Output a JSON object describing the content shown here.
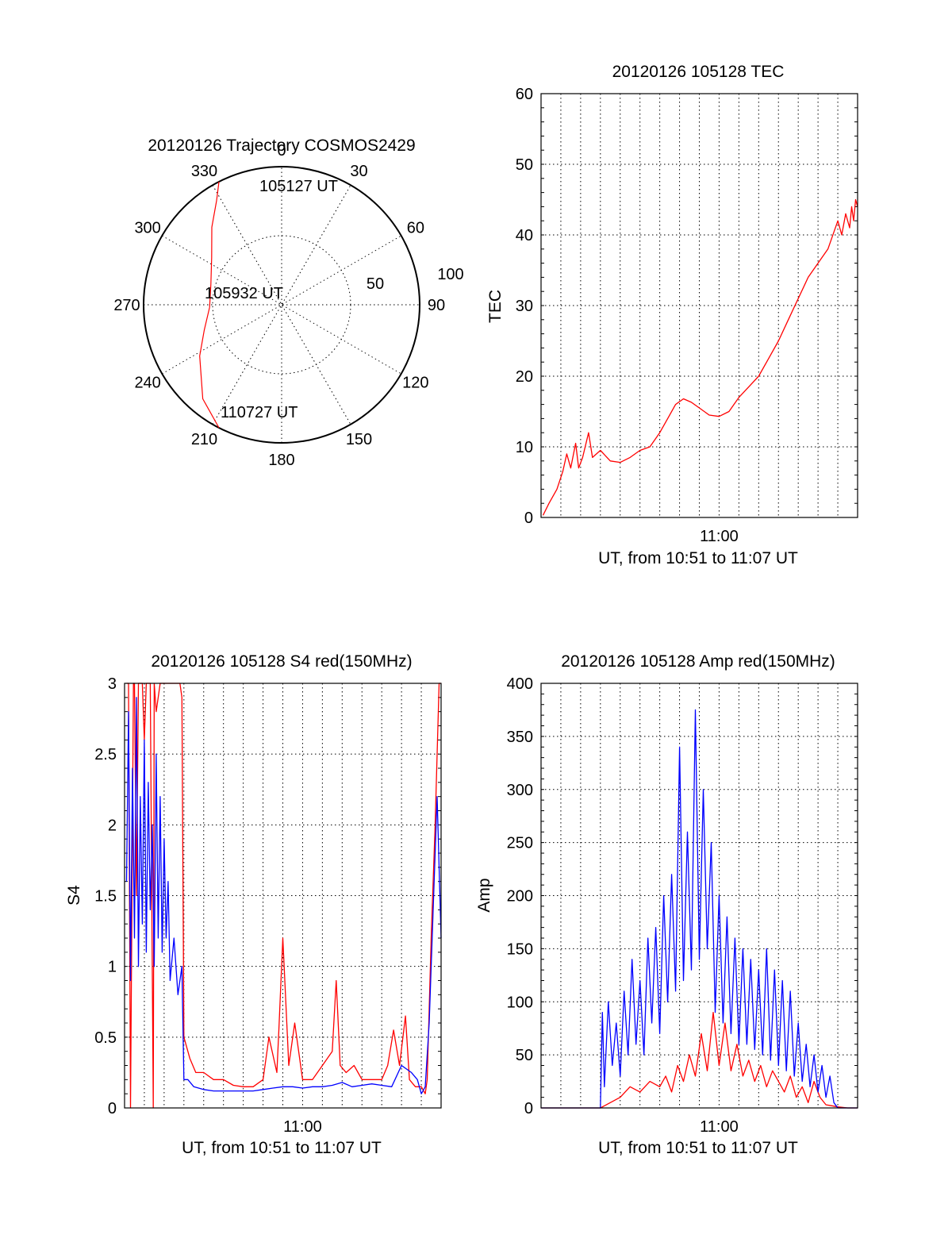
{
  "colors": {
    "red": "#ff0000",
    "blue": "#0000ff",
    "ink": "#000000"
  },
  "chart_data": [
    {
      "id": "polar",
      "type": "scatter",
      "polar": true,
      "title": "20120126 Trajectory COSMOS2429",
      "azimuth_ticks": [
        "0",
        "30",
        "60",
        "90",
        "120",
        "150",
        "180",
        "210",
        "240",
        "270",
        "300",
        "330"
      ],
      "radial_tick_labels": [
        "50",
        "100"
      ],
      "annotations": [
        "105127 UT",
        "105932 UT",
        "110727 UT"
      ],
      "series": [
        {
          "color": "red",
          "az": [
            333,
            328,
            318,
            304,
            286,
            268,
            252,
            238,
            220,
            207
          ],
          "zenith": [
            90,
            80,
            68,
            55,
            48,
            47,
            53,
            63,
            80,
            90
          ]
        }
      ]
    },
    {
      "id": "tec",
      "type": "line",
      "title": "20120126 105128 TEC",
      "xlabel": "UT, from 10:51 to 11:07 UT",
      "ylabel": "TEC",
      "xtick_labels": [
        "11:00"
      ],
      "xtick_values": [
        9
      ],
      "xlim": [
        0,
        16
      ],
      "ylim": [
        0,
        60
      ],
      "yticks": [
        0,
        10,
        20,
        30,
        40,
        50,
        60
      ],
      "series": [
        {
          "color": "red",
          "x": [
            0.1,
            0.4,
            0.8,
            1.1,
            1.3,
            1.5,
            1.75,
            1.9,
            2.1,
            2.4,
            2.6,
            3.0,
            3.5,
            4.0,
            4.5,
            5.0,
            5.5,
            6.0,
            6.4,
            6.8,
            7.2,
            7.6,
            8.0,
            8.5,
            9.0,
            9.5,
            10.0,
            10.5,
            11.0,
            11.5,
            12.0,
            12.5,
            13.0,
            13.5,
            14.0,
            14.5,
            15.0,
            15.2,
            15.4,
            15.6,
            15.7,
            15.8,
            15.9,
            16.0
          ],
          "y": [
            0.3,
            2,
            4,
            6.5,
            9,
            7,
            10.5,
            7,
            8.5,
            12,
            8.5,
            9.5,
            8,
            7.8,
            8.5,
            9.5,
            10,
            12,
            14,
            16,
            16.8,
            16.3,
            15.5,
            14.5,
            14.3,
            15,
            17,
            18.5,
            20,
            22.5,
            25,
            28,
            31,
            34,
            36,
            38,
            42,
            40,
            43,
            41,
            44,
            42,
            45,
            44
          ]
        }
      ]
    },
    {
      "id": "s4",
      "type": "line",
      "title": "20120126 105128 S4 red(150MHz)",
      "xlabel": "UT, from 10:51 to 11:07 UT",
      "ylabel": "S4",
      "xtick_labels": [
        "11:00"
      ],
      "xtick_values": [
        9
      ],
      "xlim": [
        0,
        16
      ],
      "ylim": [
        0,
        3
      ],
      "yticks": [
        "0",
        "0.5",
        "1",
        "1.5",
        "2",
        "2.5",
        "3"
      ],
      "ytick_values": [
        0,
        0.5,
        1,
        1.5,
        2,
        2.5,
        3
      ],
      "series": [
        {
          "color": "red",
          "x": [
            0.1,
            0.2,
            0.3,
            0.45,
            0.5,
            0.6,
            0.7,
            0.9,
            1.0,
            1.1,
            1.3,
            1.45,
            1.5,
            1.6,
            1.8,
            2.0,
            2.2,
            2.4,
            2.6,
            2.8,
            2.9,
            3.0,
            3.3,
            3.6,
            4.0,
            4.5,
            5.0,
            5.5,
            6.0,
            6.5,
            7.0,
            7.3,
            7.7,
            7.8,
            8.0,
            8.3,
            8.6,
            9.0,
            9.5,
            10.0,
            10.5,
            10.7,
            10.9,
            11.2,
            11.6,
            12.0,
            12.5,
            13.0,
            13.3,
            13.6,
            13.9,
            14.2,
            14.4,
            14.7,
            15.0,
            15.2,
            15.3,
            15.5,
            15.7,
            15.9,
            16.0
          ],
          "y": [
            3.0,
            3.0,
            0.0,
            3.0,
            3.0,
            1.5,
            3.0,
            3.0,
            2.6,
            3.0,
            3.0,
            0.0,
            3.0,
            2.8,
            3.0,
            3.0,
            3.0,
            3.0,
            3.0,
            3.0,
            2.9,
            0.5,
            0.35,
            0.25,
            0.25,
            0.2,
            0.2,
            0.16,
            0.15,
            0.15,
            0.2,
            0.5,
            0.25,
            0.55,
            1.2,
            0.3,
            0.6,
            0.2,
            0.2,
            0.3,
            0.4,
            0.9,
            0.3,
            0.25,
            0.3,
            0.2,
            0.2,
            0.2,
            0.3,
            0.55,
            0.3,
            0.65,
            0.2,
            0.15,
            0.15,
            0.1,
            0.2,
            1.2,
            2.0,
            3.0,
            3.0
          ]
        },
        {
          "color": "blue",
          "x": [
            0.1,
            0.2,
            0.3,
            0.4,
            0.5,
            0.6,
            0.7,
            0.8,
            0.9,
            1.0,
            1.1,
            1.2,
            1.3,
            1.4,
            1.5,
            1.6,
            1.7,
            1.8,
            1.9,
            2.0,
            2.1,
            2.2,
            2.3,
            2.5,
            2.7,
            2.9,
            3.0,
            3.2,
            3.5,
            4.0,
            4.5,
            5.0,
            5.5,
            6.0,
            6.5,
            7.0,
            7.5,
            8.0,
            8.5,
            9.0,
            9.5,
            10.0,
            10.5,
            11.0,
            11.5,
            12.0,
            12.5,
            13.0,
            13.5,
            14.0,
            14.5,
            14.8,
            15.0,
            15.2,
            15.4,
            15.6,
            15.8,
            16.0
          ],
          "y": [
            1.6,
            2.8,
            0.9,
            2.4,
            1.2,
            2.9,
            1.0,
            2.2,
            1.3,
            2.6,
            1.1,
            2.3,
            1.4,
            2.0,
            1.0,
            2.5,
            1.2,
            2.2,
            1.1,
            1.9,
            1.2,
            1.6,
            0.9,
            1.2,
            0.8,
            1.0,
            0.2,
            0.2,
            0.15,
            0.13,
            0.12,
            0.12,
            0.12,
            0.12,
            0.12,
            0.13,
            0.14,
            0.15,
            0.15,
            0.14,
            0.15,
            0.15,
            0.16,
            0.18,
            0.15,
            0.16,
            0.17,
            0.16,
            0.15,
            0.3,
            0.25,
            0.2,
            0.1,
            0.15,
            0.6,
            1.4,
            2.2,
            1.2
          ]
        }
      ]
    },
    {
      "id": "amp",
      "type": "line",
      "title": "20120126 105128 Amp red(150MHz)",
      "xlabel": "UT, from 10:51 to 11:07 UT",
      "ylabel": "Amp",
      "xtick_labels": [
        "11:00"
      ],
      "xtick_values": [
        9
      ],
      "xlim": [
        0,
        16
      ],
      "ylim": [
        0,
        400
      ],
      "yticks": [
        0,
        50,
        100,
        150,
        200,
        250,
        300,
        350,
        400
      ],
      "series": [
        {
          "color": "red",
          "x": [
            0.0,
            3.0,
            3.5,
            4.0,
            4.5,
            5.0,
            5.5,
            6.0,
            6.3,
            6.6,
            6.9,
            7.2,
            7.5,
            7.8,
            8.1,
            8.4,
            8.7,
            9.0,
            9.3,
            9.6,
            9.9,
            10.2,
            10.5,
            10.8,
            11.1,
            11.4,
            11.7,
            12.0,
            12.3,
            12.6,
            12.9,
            13.2,
            13.5,
            13.8,
            14.1,
            14.4,
            14.7,
            15.0,
            15.5,
            16.0
          ],
          "y": [
            0,
            0,
            5,
            10,
            20,
            15,
            25,
            20,
            30,
            15,
            40,
            25,
            50,
            30,
            70,
            35,
            90,
            40,
            80,
            35,
            60,
            30,
            45,
            25,
            40,
            20,
            35,
            25,
            15,
            30,
            10,
            20,
            5,
            25,
            10,
            3,
            2,
            1,
            0,
            0
          ]
        },
        {
          "color": "blue",
          "x": [
            0.0,
            2.5,
            3.0,
            3.1,
            3.2,
            3.4,
            3.6,
            3.8,
            4.0,
            4.2,
            4.4,
            4.6,
            4.8,
            5.0,
            5.2,
            5.4,
            5.6,
            5.8,
            6.0,
            6.2,
            6.4,
            6.6,
            6.8,
            7.0,
            7.2,
            7.4,
            7.6,
            7.8,
            8.0,
            8.2,
            8.4,
            8.6,
            8.8,
            9.0,
            9.2,
            9.4,
            9.6,
            9.8,
            10.0,
            10.2,
            10.4,
            10.6,
            10.8,
            11.0,
            11.2,
            11.4,
            11.6,
            11.8,
            12.0,
            12.2,
            12.4,
            12.6,
            12.8,
            13.0,
            13.2,
            13.4,
            13.6,
            13.8,
            14.0,
            14.2,
            14.4,
            14.6,
            14.8,
            15.0,
            15.5,
            16.0
          ],
          "y": [
            0,
            0,
            0,
            90,
            20,
            100,
            40,
            80,
            30,
            110,
            50,
            140,
            60,
            120,
            50,
            160,
            80,
            170,
            70,
            200,
            100,
            220,
            110,
            340,
            120,
            260,
            130,
            375,
            140,
            300,
            150,
            250,
            90,
            200,
            80,
            180,
            70,
            160,
            60,
            150,
            60,
            140,
            55,
            130,
            50,
            150,
            45,
            130,
            40,
            120,
            35,
            110,
            30,
            80,
            25,
            60,
            20,
            50,
            15,
            40,
            10,
            30,
            5,
            0,
            0,
            0
          ]
        }
      ]
    }
  ]
}
